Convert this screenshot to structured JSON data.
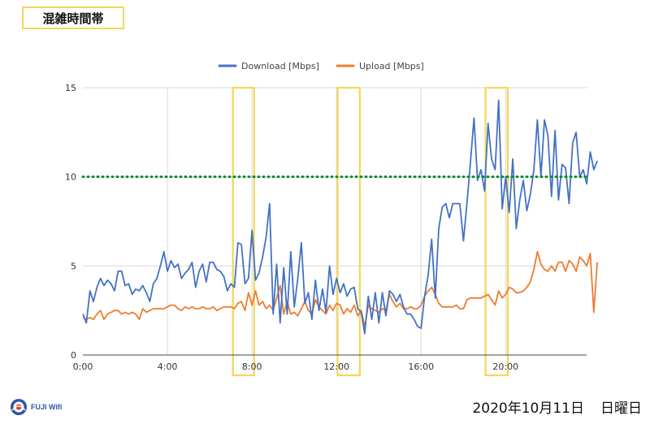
{
  "title": "混雑時間帯",
  "date_text": "2020年10月11日",
  "weekday_text": "日曜日",
  "logo": {
    "text": "FUJI Wifi",
    "icon": "fuji-wifi-logo-icon"
  },
  "colors": {
    "download": "#4472c4",
    "upload": "#ed7d31",
    "threshold": "#0b8a2f",
    "highlight": "#f3d65a",
    "grid": "#d9d9d9"
  },
  "chart_data": {
    "type": "line",
    "title": "",
    "xlabel": "",
    "ylabel": "",
    "xlim": [
      0,
      23.833
    ],
    "ylim": [
      0,
      15
    ],
    "yticks": [
      0,
      5,
      10,
      15
    ],
    "xticks": [
      {
        "value": 0,
        "label": "0:00"
      },
      {
        "value": 4,
        "label": "4:00"
      },
      {
        "value": 8,
        "label": "8:00"
      },
      {
        "value": 12,
        "label": "12:00"
      },
      {
        "value": 16,
        "label": "16:00"
      },
      {
        "value": 20,
        "label": "20:00"
      }
    ],
    "legend": {
      "position": "top"
    },
    "x_step_hours": 0.1667,
    "series": [
      {
        "name": "Download [Mbps]",
        "color_key": "download",
        "values": [
          2.3,
          1.8,
          3.6,
          3.0,
          3.8,
          4.3,
          3.9,
          4.2,
          4.0,
          3.6,
          4.7,
          4.7,
          3.9,
          4.0,
          3.4,
          3.7,
          3.6,
          3.9,
          3.5,
          3.0,
          4.0,
          4.3,
          5.0,
          5.8,
          4.7,
          5.3,
          4.9,
          5.1,
          4.3,
          4.6,
          4.8,
          5.2,
          3.8,
          4.7,
          5.1,
          4.1,
          5.2,
          5.2,
          4.8,
          4.7,
          4.4,
          3.6,
          4.0,
          3.8,
          6.3,
          6.2,
          4.0,
          4.3,
          7.0,
          4.2,
          4.6,
          5.5,
          6.6,
          8.5,
          2.3,
          5.1,
          1.8,
          4.9,
          2.3,
          5.8,
          2.7,
          4.3,
          6.3,
          2.9,
          3.5,
          2.0,
          4.2,
          2.5,
          3.7,
          2.4,
          5.0,
          3.4,
          4.3,
          3.5,
          4.0,
          3.3,
          3.7,
          3.8,
          2.6,
          2.4,
          1.2,
          3.3,
          2.0,
          3.5,
          1.8,
          3.5,
          2.2,
          3.6,
          3.4,
          3.0,
          3.4,
          2.7,
          2.3,
          2.3,
          2.0,
          1.6,
          1.5,
          3.3,
          4.5,
          6.5,
          3.2,
          7.1,
          8.3,
          8.5,
          7.7,
          8.5,
          8.5,
          8.5,
          6.4,
          8.5,
          10.8,
          13.3,
          9.8,
          10.4,
          9.2,
          13.0,
          11.0,
          10.4,
          14.3,
          8.2,
          10.0,
          8.0,
          11.0,
          7.1,
          8.7,
          9.8,
          8.1,
          9.0,
          10.4,
          13.2,
          10.0,
          13.2,
          12.3,
          8.9,
          12.6,
          8.7,
          10.7,
          10.5,
          8.5,
          11.9,
          12.5,
          10.0,
          10.4,
          9.6,
          11.4,
          10.4,
          10.9
        ]
      },
      {
        "name": "Upload [Mbps]",
        "color_key": "upload",
        "values": [
          2.1,
          2.0,
          2.1,
          2.0,
          2.3,
          2.5,
          2.0,
          2.3,
          2.4,
          2.5,
          2.5,
          2.3,
          2.4,
          2.3,
          2.4,
          2.3,
          2.0,
          2.6,
          2.4,
          2.5,
          2.6,
          2.6,
          2.6,
          2.6,
          2.7,
          2.8,
          2.8,
          2.6,
          2.5,
          2.7,
          2.6,
          2.7,
          2.6,
          2.6,
          2.7,
          2.6,
          2.6,
          2.7,
          2.5,
          2.6,
          2.7,
          2.7,
          2.7,
          2.6,
          2.9,
          3.0,
          2.5,
          3.5,
          2.8,
          3.6,
          2.8,
          3.0,
          2.6,
          2.8,
          2.5,
          3.2,
          3.9,
          2.3,
          3.0,
          2.3,
          2.4,
          2.2,
          2.6,
          3.0,
          2.5,
          2.3,
          3.1,
          2.7,
          2.5,
          2.3,
          2.8,
          2.5,
          2.9,
          2.8,
          2.3,
          2.6,
          2.4,
          2.8,
          2.2,
          2.5,
          1.6,
          2.8,
          2.6,
          2.5,
          2.4,
          2.6,
          2.5,
          3.4,
          3.0,
          2.7,
          2.9,
          2.6,
          2.6,
          2.7,
          2.6,
          2.6,
          2.8,
          3.3,
          3.6,
          3.8,
          3.4,
          2.9,
          2.7,
          2.7,
          2.7,
          2.7,
          2.8,
          2.6,
          2.6,
          3.1,
          3.2,
          3.2,
          3.2,
          3.2,
          3.3,
          3.4,
          3.1,
          2.8,
          3.6,
          3.2,
          3.4,
          3.8,
          3.7,
          3.5,
          3.5,
          3.6,
          3.8,
          4.1,
          4.8,
          5.8,
          5.1,
          4.8,
          4.7,
          5.0,
          4.7,
          5.2,
          5.2,
          4.7,
          5.3,
          5.1,
          4.7,
          5.5,
          5.3,
          5.0,
          5.7,
          2.4,
          5.2
        ]
      }
    ],
    "threshold_line": {
      "value": 10,
      "style": "dotted"
    },
    "highlight_ranges": [
      {
        "from": 7.1,
        "to": 8.1
      },
      {
        "from": 12.05,
        "to": 13.1
      },
      {
        "from": 19.05,
        "to": 20.1
      }
    ]
  }
}
